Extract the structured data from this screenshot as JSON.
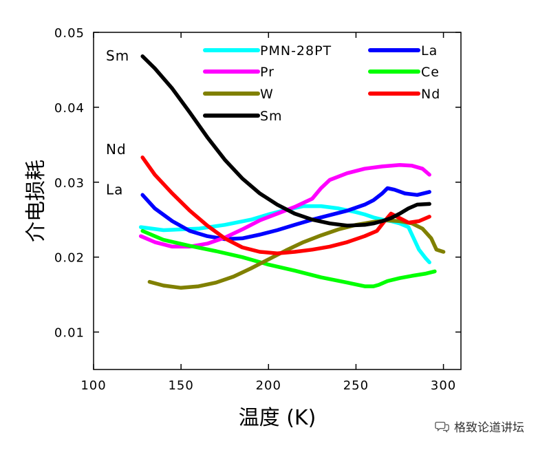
{
  "chart_data": {
    "type": "line",
    "xlabel": "温度 (K)",
    "ylabel": "介电损耗",
    "xlim": [
      100,
      310
    ],
    "ylim": [
      0.005,
      0.05
    ],
    "xticks": [
      100,
      150,
      200,
      250,
      300
    ],
    "yticks": [
      0.01,
      0.02,
      0.03,
      0.04,
      0.05
    ],
    "xtick_labels": [
      "100",
      "150",
      "200",
      "250",
      "300"
    ],
    "ytick_labels": [
      "0.01",
      "0.02",
      "0.03",
      "0.04",
      "0.05"
    ],
    "legend_position": "top-right",
    "series": [
      {
        "name": "PMN-28PT",
        "color": "#00ffff",
        "x": [
          127,
          140,
          160,
          175,
          190,
          200,
          210,
          220,
          230,
          240,
          250,
          255,
          260,
          265,
          270,
          275,
          280,
          283,
          286,
          290,
          292
        ],
        "y": [
          0.024,
          0.0236,
          0.0238,
          0.0243,
          0.025,
          0.0257,
          0.0263,
          0.0268,
          0.0268,
          0.0265,
          0.026,
          0.0257,
          0.0253,
          0.025,
          0.0248,
          0.0245,
          0.024,
          0.0225,
          0.021,
          0.0198,
          0.0193
        ]
      },
      {
        "name": "La",
        "color": "#0000ff",
        "x": [
          128,
          135,
          145,
          155,
          165,
          175,
          185,
          195,
          205,
          215,
          225,
          235,
          245,
          255,
          260,
          265,
          268,
          272,
          278,
          285,
          292
        ],
        "y": [
          0.0283,
          0.0265,
          0.0248,
          0.0235,
          0.0228,
          0.0224,
          0.0225,
          0.023,
          0.0236,
          0.0243,
          0.025,
          0.0256,
          0.0262,
          0.027,
          0.0276,
          0.0285,
          0.0292,
          0.029,
          0.0285,
          0.0283,
          0.0287
        ]
      },
      {
        "name": "Pr",
        "color": "#ff00ff",
        "x": [
          127,
          135,
          145,
          155,
          165,
          175,
          185,
          195,
          205,
          215,
          225,
          230,
          235,
          245,
          255,
          265,
          275,
          282,
          288,
          292
        ],
        "y": [
          0.0228,
          0.022,
          0.0214,
          0.0214,
          0.0218,
          0.0226,
          0.0237,
          0.0249,
          0.0258,
          0.0267,
          0.0278,
          0.0292,
          0.0303,
          0.0312,
          0.0318,
          0.0321,
          0.0323,
          0.0322,
          0.0318,
          0.031
        ]
      },
      {
        "name": "Ce",
        "color": "#00ff00",
        "x": [
          128,
          140,
          155,
          170,
          185,
          200,
          215,
          230,
          245,
          255,
          260,
          263,
          268,
          275,
          282,
          290,
          295
        ],
        "y": [
          0.0235,
          0.0223,
          0.0215,
          0.0208,
          0.02,
          0.019,
          0.0182,
          0.0173,
          0.0166,
          0.0161,
          0.0161,
          0.0163,
          0.0168,
          0.0172,
          0.0175,
          0.0178,
          0.0181
        ]
      },
      {
        "name": "W",
        "color": "#808000",
        "x": [
          132,
          140,
          150,
          160,
          170,
          180,
          190,
          200,
          210,
          220,
          230,
          240,
          250,
          260,
          268,
          275,
          282,
          288,
          293,
          296,
          300
        ],
        "y": [
          0.0167,
          0.0162,
          0.0159,
          0.0161,
          0.0166,
          0.0174,
          0.0185,
          0.0197,
          0.0209,
          0.022,
          0.0229,
          0.0237,
          0.0243,
          0.0247,
          0.0249,
          0.0248,
          0.0245,
          0.0238,
          0.0225,
          0.021,
          0.0207
        ]
      },
      {
        "name": "Nd",
        "color": "#ff0000",
        "x": [
          128,
          135,
          145,
          155,
          165,
          175,
          185,
          195,
          205,
          215,
          225,
          235,
          245,
          255,
          262,
          266,
          270,
          275,
          280,
          286,
          292
        ],
        "y": [
          0.0333,
          0.031,
          0.0285,
          0.0262,
          0.0242,
          0.0225,
          0.0213,
          0.0207,
          0.0205,
          0.0207,
          0.021,
          0.0214,
          0.022,
          0.0228,
          0.0235,
          0.0247,
          0.0258,
          0.0252,
          0.0246,
          0.0248,
          0.0254
        ]
      },
      {
        "name": "Sm",
        "color": "#000000",
        "x": [
          128,
          135,
          145,
          155,
          165,
          175,
          185,
          195,
          205,
          215,
          225,
          235,
          245,
          255,
          260,
          265,
          270,
          275,
          280,
          285,
          292
        ],
        "y": [
          0.0468,
          0.0452,
          0.0425,
          0.0393,
          0.036,
          0.033,
          0.0305,
          0.0285,
          0.027,
          0.0258,
          0.025,
          0.0245,
          0.0242,
          0.0243,
          0.0245,
          0.0248,
          0.0252,
          0.0258,
          0.0265,
          0.027,
          0.0271
        ]
      }
    ],
    "annotations": [
      {
        "text": "Sm",
        "x": 112,
        "y": 0.0469
      },
      {
        "text": "Nd",
        "x": 112,
        "y": 0.0344
      },
      {
        "text": "La",
        "x": 112,
        "y": 0.029
      }
    ]
  },
  "watermark": {
    "text": "格致论道讲坛",
    "icon": "chat-bubbles-icon"
  }
}
